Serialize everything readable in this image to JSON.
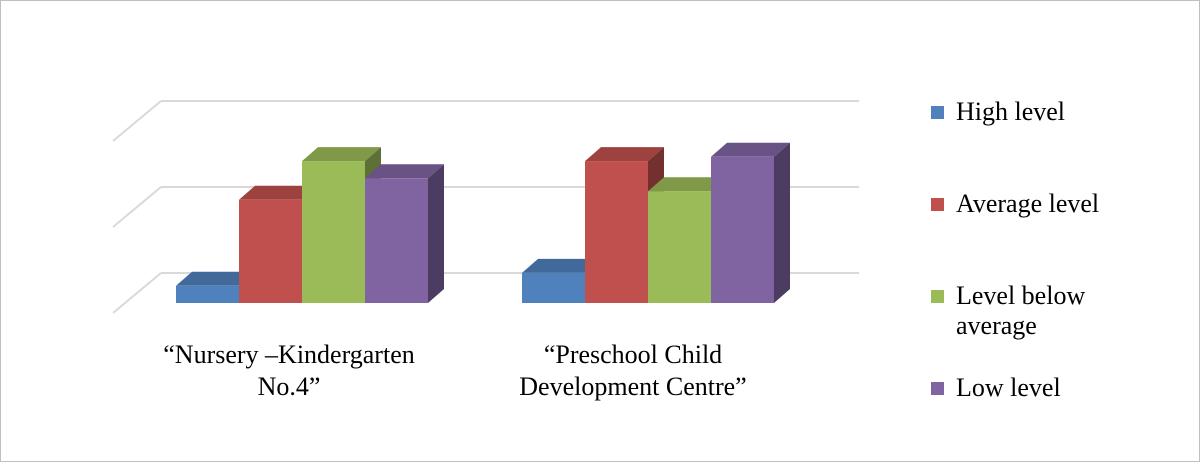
{
  "chart_data": {
    "type": "bar",
    "style": "3d-clustered-column",
    "categories": [
      "“Nursery –Kindergarten\nNo.4”",
      "“Preschool Child\nDevelopment Centre”"
    ],
    "series": [
      {
        "name": "High level",
        "color": "#4f81bd",
        "values": [
          2,
          3.5
        ]
      },
      {
        "name": "Average level",
        "color": "#c0504d",
        "values": [
          12,
          16.5
        ]
      },
      {
        "name": "Level below average",
        "color": "#9bbb59",
        "values": [
          16.5,
          13
        ]
      },
      {
        "name": "Low level",
        "color": "#8064a2",
        "values": [
          14.5,
          17
        ]
      }
    ],
    "ylim": [
      0,
      20
    ],
    "gridlines": [
      0,
      10,
      20
    ],
    "grid": true,
    "legend": "right",
    "axis_tick_labels": false
  },
  "legend_items": [
    "High level",
    "Average level",
    "Level below\naverage",
    "Low level"
  ]
}
